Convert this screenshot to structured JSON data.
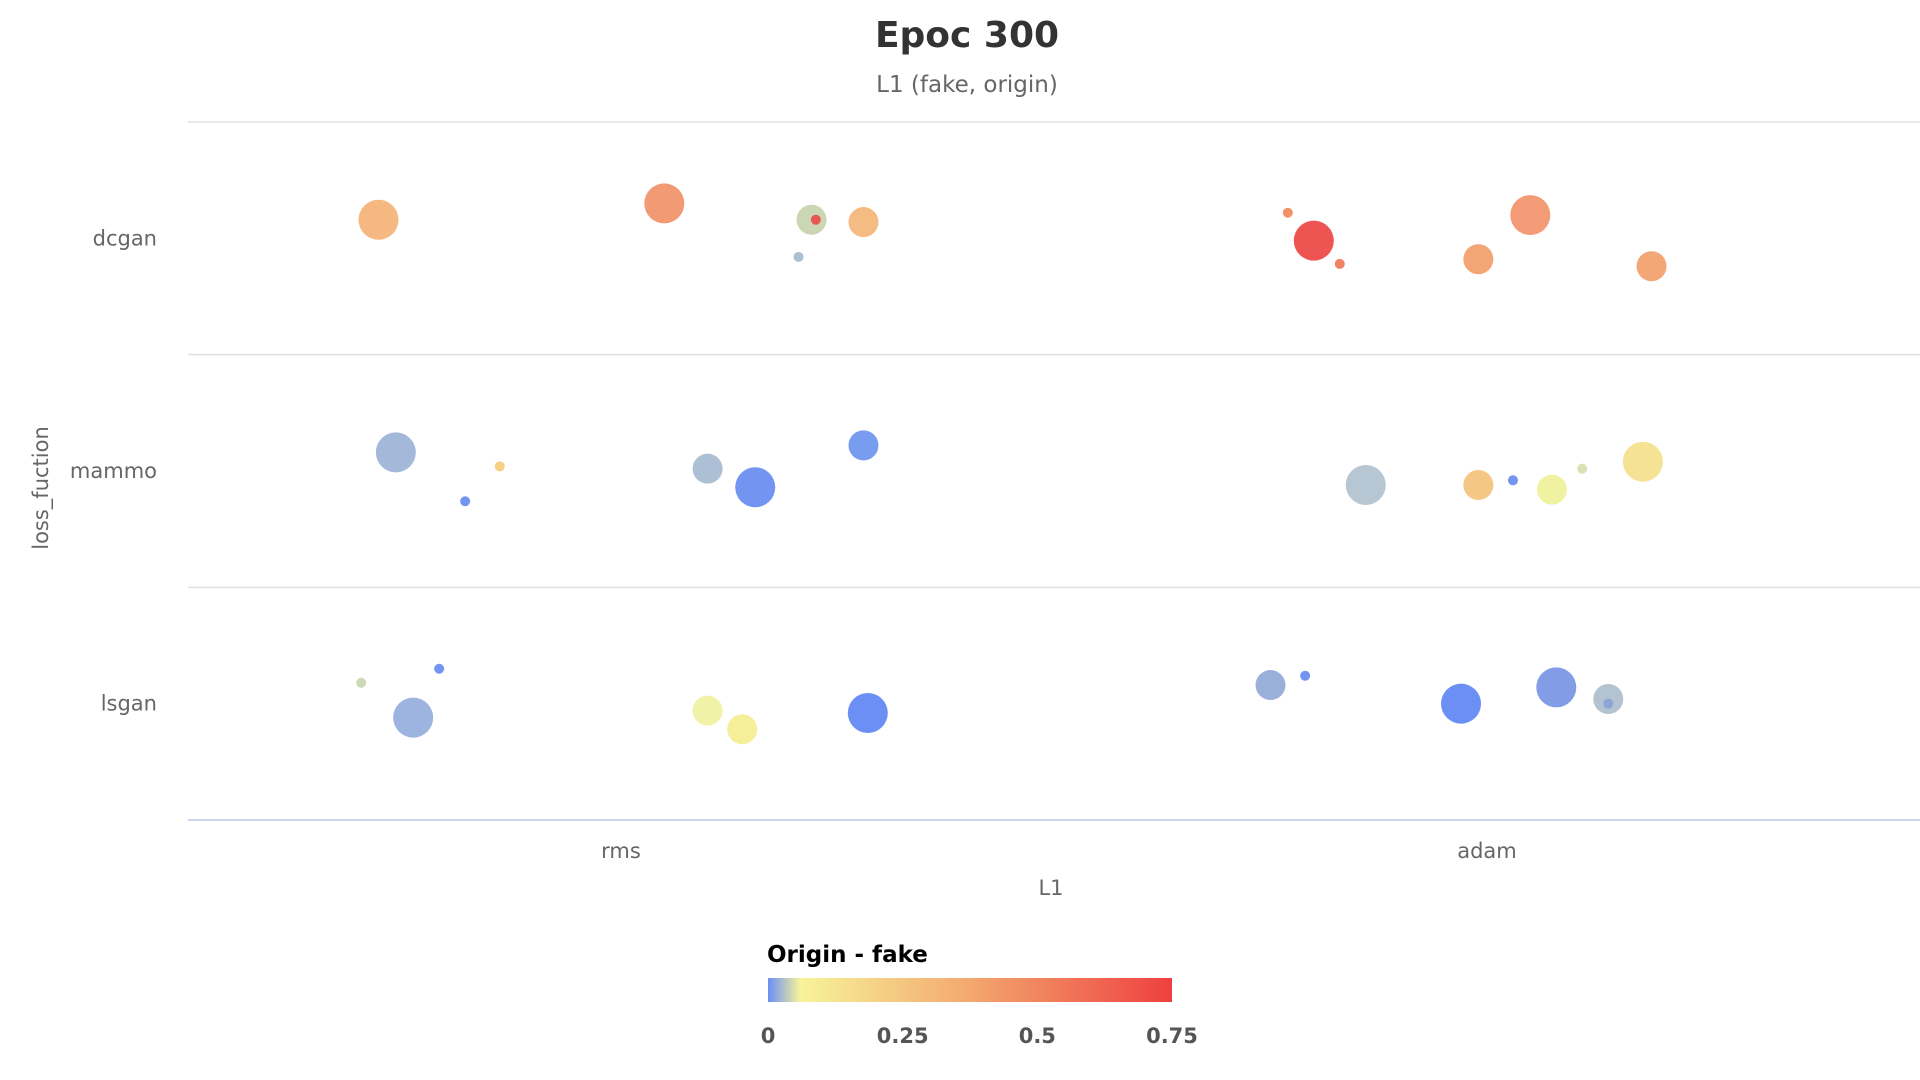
{
  "chart_data": {
    "type": "scatter",
    "title": "Epoc 300",
    "subtitle": "L1 (fake, origin)",
    "xlabel": "L1",
    "ylabel": "loss_fuction",
    "x_categories": [
      "rms",
      "adam"
    ],
    "y_categories": [
      "dcgan",
      "mammo",
      "lsgan"
    ],
    "grid": true,
    "color_axis": {
      "title": "Origin - fake",
      "min": 0,
      "max": 0.75,
      "ticks": [
        "0",
        "0.25",
        "0.5",
        "0.75"
      ],
      "stops": [
        {
          "value": 0,
          "color": "#6a8ff5"
        },
        {
          "value": 0.06,
          "color": "#f7f49a"
        },
        {
          "value": 0.375,
          "color": "#f3a86f"
        },
        {
          "value": 0.75,
          "color": "#ee4040"
        }
      ],
      "legend_position": "bottom"
    },
    "points": [
      {
        "x": "rms",
        "xo": -0.28,
        "y": "dcgan",
        "yo": 0.08,
        "z": 16,
        "color": "#f4b47a"
      },
      {
        "x": "rms",
        "xo": 0.05,
        "y": "dcgan",
        "yo": 0.15,
        "z": 16,
        "color": "#f0956b"
      },
      {
        "x": "rms",
        "xo": 0.22,
        "y": "dcgan",
        "yo": 0.08,
        "z": 12,
        "color": "#c7d4b0"
      },
      {
        "x": "rms",
        "xo": 0.28,
        "y": "dcgan",
        "yo": 0.07,
        "z": 12,
        "color": "#f3b77b"
      },
      {
        "x": "rms",
        "xo": 0.225,
        "y": "dcgan",
        "yo": 0.08,
        "z": 4,
        "color": "#e84f4c"
      },
      {
        "x": "rms",
        "xo": 0.205,
        "y": "dcgan",
        "yo": -0.08,
        "z": 4,
        "color": "#a9bdd0"
      },
      {
        "x": "adam",
        "xo": -0.23,
        "y": "dcgan",
        "yo": 0.11,
        "z": 4,
        "color": "#f08b62"
      },
      {
        "x": "adam",
        "xo": -0.2,
        "y": "dcgan",
        "yo": -0.01,
        "z": 16,
        "color": "#ec4b49"
      },
      {
        "x": "adam",
        "xo": -0.17,
        "y": "dcgan",
        "yo": -0.11,
        "z": 4,
        "color": "#f07b5d"
      },
      {
        "x": "adam",
        "xo": 0.05,
        "y": "dcgan",
        "yo": 0.1,
        "z": 16,
        "color": "#f29670"
      },
      {
        "x": "adam",
        "xo": -0.01,
        "y": "dcgan",
        "yo": -0.09,
        "z": 12,
        "color": "#f2a06e"
      },
      {
        "x": "adam",
        "xo": 0.19,
        "y": "dcgan",
        "yo": -0.12,
        "z": 12,
        "color": "#f2a270"
      },
      {
        "x": "rms",
        "xo": -0.26,
        "y": "mammo",
        "yo": 0.08,
        "z": 16,
        "color": "#9fb5d8"
      },
      {
        "x": "rms",
        "xo": -0.14,
        "y": "mammo",
        "yo": 0.02,
        "z": 4,
        "color": "#f5cf7d"
      },
      {
        "x": "rms",
        "xo": -0.18,
        "y": "mammo",
        "yo": -0.13,
        "z": 4,
        "color": "#6b8ff0"
      },
      {
        "x": "rms",
        "xo": 0.1,
        "y": "mammo",
        "yo": 0.01,
        "z": 12,
        "color": "#a8bcd3"
      },
      {
        "x": "rms",
        "xo": 0.155,
        "y": "mammo",
        "yo": -0.07,
        "z": 16,
        "color": "#6b8ff0"
      },
      {
        "x": "rms",
        "xo": 0.28,
        "y": "mammo",
        "yo": 0.11,
        "z": 12,
        "color": "#7197ef"
      },
      {
        "x": "adam",
        "xo": -0.14,
        "y": "mammo",
        "yo": -0.06,
        "z": 16,
        "color": "#b2c3d0"
      },
      {
        "x": "adam",
        "xo": -0.01,
        "y": "mammo",
        "yo": -0.06,
        "z": 12,
        "color": "#f3c47e"
      },
      {
        "x": "adam",
        "xo": 0.03,
        "y": "mammo",
        "yo": -0.04,
        "z": 4,
        "color": "#6b8ff0"
      },
      {
        "x": "adam",
        "xo": 0.075,
        "y": "mammo",
        "yo": -0.08,
        "z": 12,
        "color": "#eff19d"
      },
      {
        "x": "adam",
        "xo": 0.11,
        "y": "mammo",
        "yo": 0.01,
        "z": 4,
        "color": "#d9dfb2"
      },
      {
        "x": "adam",
        "xo": 0.18,
        "y": "mammo",
        "yo": 0.04,
        "z": 16,
        "color": "#f6e08f"
      },
      {
        "x": "rms",
        "xo": -0.3,
        "y": "lsgan",
        "yo": 0.09,
        "z": 4,
        "color": "#c8d7b1"
      },
      {
        "x": "rms",
        "xo": -0.21,
        "y": "lsgan",
        "yo": 0.15,
        "z": 4,
        "color": "#6b8ff0"
      },
      {
        "x": "rms",
        "xo": -0.24,
        "y": "lsgan",
        "yo": -0.06,
        "z": 16,
        "color": "#97b0dd"
      },
      {
        "x": "rms",
        "xo": 0.1,
        "y": "lsgan",
        "yo": -0.03,
        "z": 12,
        "color": "#eff1a2"
      },
      {
        "x": "rms",
        "xo": 0.14,
        "y": "lsgan",
        "yo": -0.11,
        "z": 12,
        "color": "#f6ee95"
      },
      {
        "x": "rms",
        "xo": 0.285,
        "y": "lsgan",
        "yo": -0.04,
        "z": 16,
        "color": "#6389f3"
      },
      {
        "x": "adam",
        "xo": -0.25,
        "y": "lsgan",
        "yo": 0.08,
        "z": 12,
        "color": "#95acd9"
      },
      {
        "x": "adam",
        "xo": -0.21,
        "y": "lsgan",
        "yo": 0.12,
        "z": 4,
        "color": "#6b8ff0"
      },
      {
        "x": "adam",
        "xo": -0.03,
        "y": "lsgan",
        "yo": 0.0,
        "z": 16,
        "color": "#6389f3"
      },
      {
        "x": "adam",
        "xo": 0.08,
        "y": "lsgan",
        "yo": 0.07,
        "z": 16,
        "color": "#7b97e5"
      },
      {
        "x": "adam",
        "xo": 0.14,
        "y": "lsgan",
        "yo": 0.02,
        "z": 12,
        "color": "#b0c0cf"
      },
      {
        "x": "adam",
        "xo": 0.14,
        "y": "lsgan",
        "yo": 0.0,
        "z": 4,
        "color": "#8ca4d6"
      }
    ]
  }
}
